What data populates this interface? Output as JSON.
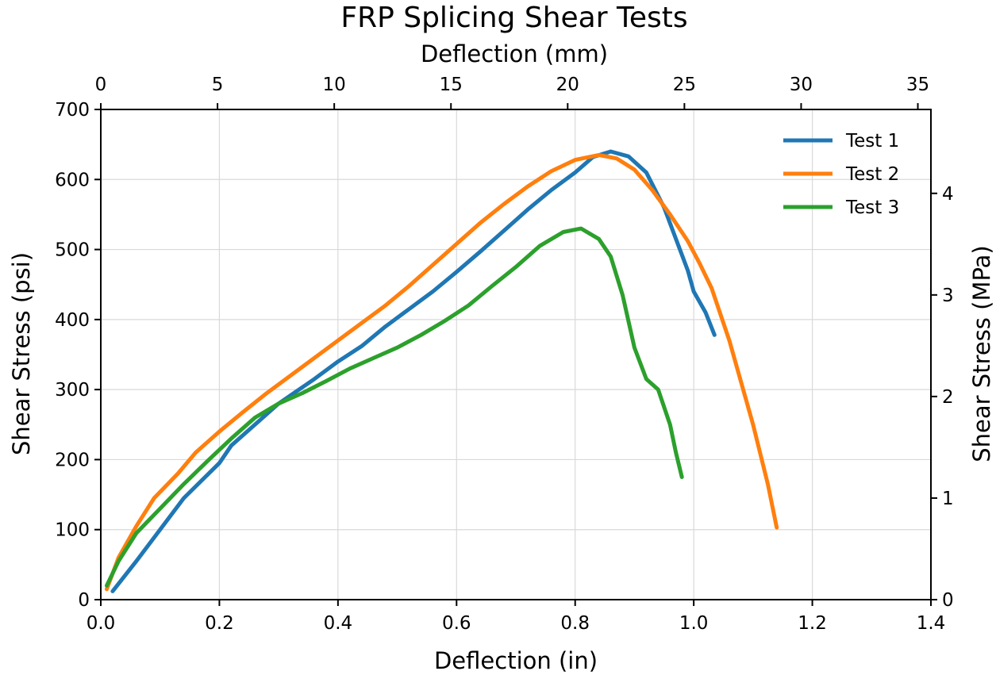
{
  "chart_data": {
    "type": "line",
    "title": "FRP Splicing Shear Tests",
    "xlabel": "Deflection (in)",
    "ylabel": "Shear Stress (psi)",
    "x2label": "Deflection (mm)",
    "y2label": "Shear Stress (MPa)",
    "xlim": [
      0,
      1.4
    ],
    "ylim": [
      0,
      700
    ],
    "x2lim": [
      0,
      35.56
    ],
    "y2lim": [
      0,
      4.826
    ],
    "xticks": [
      "0.0",
      "0.2",
      "0.4",
      "0.6",
      "0.8",
      "1.0",
      "1.2",
      "1.4"
    ],
    "yticks": [
      "0",
      "100",
      "200",
      "300",
      "400",
      "500",
      "600",
      "700"
    ],
    "x2ticks": [
      "0",
      "5",
      "10",
      "15",
      "20",
      "25",
      "30",
      "35"
    ],
    "y2ticks": [
      "0",
      "1",
      "2",
      "3",
      "4"
    ],
    "grid": true,
    "legend": "top-right",
    "series": [
      {
        "name": "Test 1",
        "color": "#1f77b4",
        "x": [
          0.02,
          0.06,
          0.1,
          0.14,
          0.2,
          0.22,
          0.26,
          0.3,
          0.36,
          0.4,
          0.44,
          0.48,
          0.52,
          0.56,
          0.6,
          0.64,
          0.68,
          0.72,
          0.76,
          0.8,
          0.83,
          0.86,
          0.89,
          0.92,
          0.95,
          0.97,
          0.99,
          1.0,
          1.02,
          1.035
        ],
        "y": [
          12,
          55,
          100,
          145,
          195,
          220,
          250,
          280,
          315,
          340,
          362,
          390,
          415,
          440,
          468,
          497,
          527,
          557,
          585,
          610,
          632,
          640,
          633,
          610,
          560,
          515,
          470,
          440,
          410,
          378
        ]
      },
      {
        "name": "Test 2",
        "color": "#ff7f0e",
        "x": [
          0.01,
          0.03,
          0.06,
          0.09,
          0.13,
          0.16,
          0.2,
          0.24,
          0.28,
          0.32,
          0.36,
          0.4,
          0.44,
          0.48,
          0.52,
          0.56,
          0.6,
          0.64,
          0.68,
          0.72,
          0.76,
          0.8,
          0.84,
          0.87,
          0.9,
          0.93,
          0.96,
          0.99,
          1.01,
          1.03,
          1.06,
          1.1,
          1.125,
          1.14
        ],
        "y": [
          15,
          60,
          105,
          145,
          180,
          210,
          240,
          268,
          295,
          320,
          345,
          370,
          395,
          420,
          448,
          478,
          508,
          538,
          565,
          590,
          612,
          628,
          635,
          630,
          614,
          585,
          550,
          512,
          480,
          445,
          370,
          250,
          165,
          103
        ]
      },
      {
        "name": "Test 3",
        "color": "#2ca02c",
        "x": [
          0.01,
          0.03,
          0.06,
          0.1,
          0.14,
          0.18,
          0.22,
          0.26,
          0.3,
          0.34,
          0.38,
          0.42,
          0.46,
          0.5,
          0.54,
          0.58,
          0.62,
          0.66,
          0.7,
          0.74,
          0.78,
          0.81,
          0.84,
          0.86,
          0.88,
          0.9,
          0.92,
          0.94,
          0.96,
          0.97,
          0.98
        ],
        "y": [
          20,
          55,
          95,
          130,
          165,
          198,
          230,
          260,
          280,
          295,
          312,
          330,
          345,
          360,
          378,
          398,
          420,
          448,
          475,
          505,
          525,
          530,
          515,
          490,
          435,
          360,
          315,
          300,
          250,
          210,
          175
        ]
      }
    ]
  }
}
